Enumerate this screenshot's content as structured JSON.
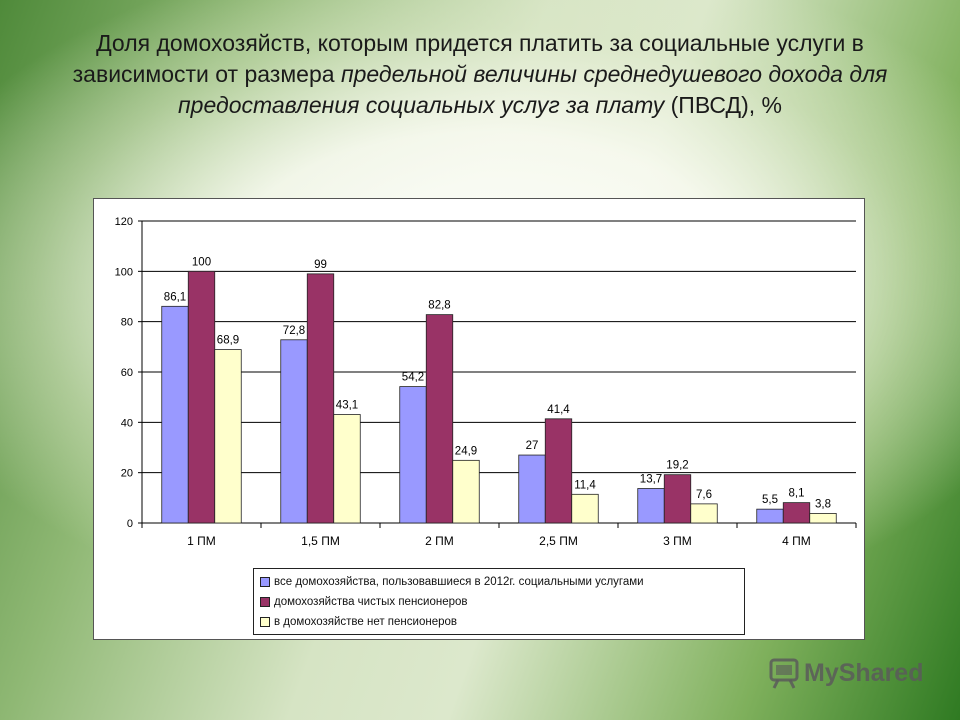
{
  "title": {
    "part1": "Доля домохозяйств, которым придется платить за  социальные услуги в зависимости от размера ",
    "part2_italic": "предельной величины среднедушевого дохода для предоставления социальных услуг за плату",
    "part3": " (ПВСД), %"
  },
  "watermark": {
    "text": "MyShared",
    "icon": "myshared-logo-icon"
  },
  "chart_data": {
    "type": "bar",
    "title": "",
    "xlabel": "",
    "ylabel": "",
    "ylim": [
      0,
      120
    ],
    "yticks": [
      "0",
      "20",
      "40",
      "60",
      "80",
      "100",
      "120"
    ],
    "grid": true,
    "legend_position": "bottom",
    "categories": [
      "1 ПМ",
      "1,5 ПМ",
      "2 ПМ",
      "2,5 ПМ",
      "3 ПМ",
      "4 ПМ"
    ],
    "series": [
      {
        "name": "все домохозяйства, пользовавшиеся  в 2012г. социальными услугами",
        "color": "#9999FF",
        "values": [
          86.1,
          72.8,
          54.2,
          27,
          13.7,
          5.5
        ],
        "labels": [
          "86,1",
          "72,8",
          "54,2",
          "27",
          "13,7",
          "5,5"
        ]
      },
      {
        "name": "домохозяйства чистых пенсионеров",
        "color": "#993366",
        "values": [
          100,
          99,
          82.8,
          41.4,
          19.2,
          8.1
        ],
        "labels": [
          "100",
          "99",
          "82,8",
          "41,4",
          "19,2",
          "8,1"
        ]
      },
      {
        "name": "в домохозяйстве нет пенсионеров",
        "color": "#FFFFCC",
        "values": [
          68.9,
          43.1,
          24.9,
          11.4,
          7.6,
          3.8
        ],
        "labels": [
          "68,9",
          "43,1",
          "24,9",
          "11,4",
          "7,6",
          "3,8"
        ]
      }
    ]
  }
}
